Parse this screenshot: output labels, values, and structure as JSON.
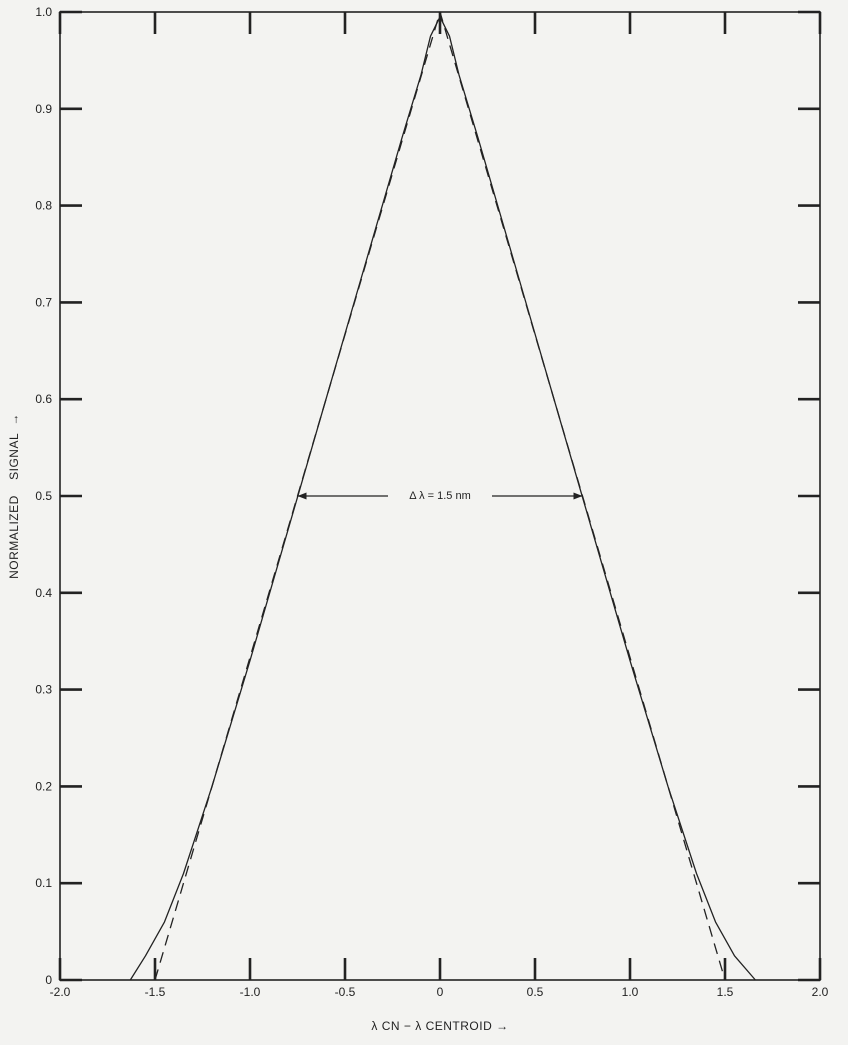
{
  "chart_data": {
    "type": "line",
    "title": "",
    "xlabel": "λ CN − λ CENTROID →",
    "ylabel": "NORMALIZED    SIGNAL  →",
    "xlim": [
      -2.0,
      2.0
    ],
    "ylim": [
      0,
      1.0
    ],
    "x_ticks": [
      -2.0,
      -1.5,
      -1.0,
      -0.5,
      0,
      0.5,
      1.0,
      1.5,
      2.0
    ],
    "x_tick_labels": [
      "-2.0",
      "-1.5",
      "-1.0",
      "-0.5",
      "0",
      "0.5",
      "1.0",
      "1.5",
      "2.0"
    ],
    "y_ticks": [
      0,
      0.1,
      0.2,
      0.3,
      0.4,
      0.5,
      0.6,
      0.7,
      0.8,
      0.9,
      1.0
    ],
    "y_tick_labels": [
      "0",
      "0.1",
      "0.2",
      "0.3",
      "0.4",
      "0.5",
      "0.6",
      "0.7",
      "0.8",
      "0.9",
      "1.0"
    ],
    "grid": false,
    "series": [
      {
        "style": "solid",
        "color": "#222222",
        "x": [
          -1.63,
          -1.55,
          -1.45,
          -1.35,
          -1.2,
          -1.0,
          -0.8,
          -0.6,
          -0.4,
          -0.2,
          -0.1,
          -0.05,
          0,
          0.05,
          0.1,
          0.2,
          0.4,
          0.6,
          0.8,
          1.0,
          1.2,
          1.35,
          1.45,
          1.55,
          1.66
        ],
        "y": [
          0,
          0.025,
          0.06,
          0.11,
          0.2,
          0.33,
          0.465,
          0.6,
          0.735,
          0.87,
          0.935,
          0.975,
          0.995,
          0.975,
          0.935,
          0.87,
          0.735,
          0.6,
          0.465,
          0.33,
          0.2,
          0.11,
          0.06,
          0.025,
          0
        ]
      },
      {
        "style": "dashed",
        "color": "#222222",
        "x": [
          -1.5,
          0,
          1.5
        ],
        "y": [
          0,
          1.0,
          0
        ]
      }
    ],
    "annotation": {
      "text": "Δ λ = 1.5 nm",
      "x_start": -0.75,
      "x_end": 0.75,
      "y": 0.5
    }
  }
}
